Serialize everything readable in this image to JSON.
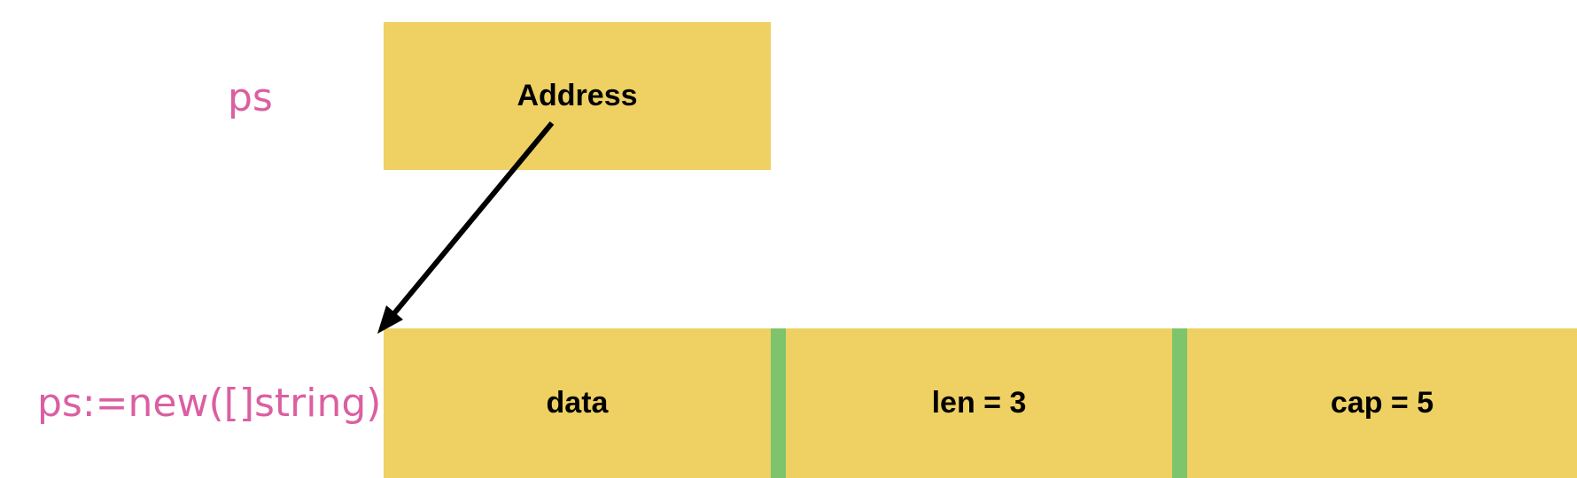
{
  "colors": {
    "box_fill": "#EED162",
    "separator": "#7DC46C",
    "label_text": "#DB5FA2",
    "arrow": "#000000"
  },
  "pointer": {
    "label": "ps",
    "box_text": "Address"
  },
  "slice_header": {
    "label": "ps:=new([]string)",
    "fields": [
      {
        "name": "data",
        "text": "data"
      },
      {
        "name": "len",
        "text": "len = 3"
      },
      {
        "name": "cap",
        "text": "cap = 5"
      }
    ]
  }
}
